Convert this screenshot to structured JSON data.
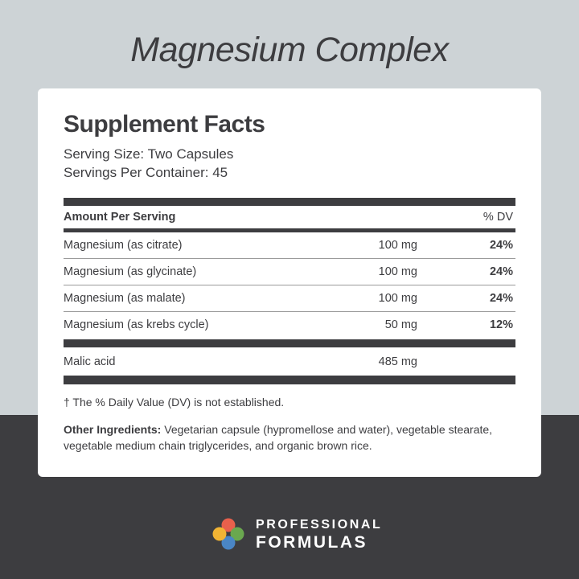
{
  "product_title": "Magnesium Complex",
  "panel": {
    "title": "Supplement Facts",
    "serving_size": "Serving Size: Two Capsules",
    "servings_per_container": "Servings Per Container: 45",
    "header_left": "Amount Per Serving",
    "header_right": "% DV",
    "rows": [
      {
        "name": "Magnesium (as citrate)",
        "amount": "100 mg",
        "dv": "24%"
      },
      {
        "name": "Magnesium (as glycinate)",
        "amount": "100 mg",
        "dv": "24%"
      },
      {
        "name": "Magnesium (as malate)",
        "amount": "100 mg",
        "dv": "24%"
      },
      {
        "name": "Magnesium (as krebs cycle)",
        "amount": "50 mg",
        "dv": "12%"
      },
      {
        "name": "Malic acid",
        "amount": "485 mg",
        "dv": ""
      }
    ],
    "note": "† The % Daily Value (DV) is not established.",
    "other_label": "Other Ingredients:",
    "other_text": " Vegetarian capsule (hypromellose and water), vegetable stearate, vegetable medium chain triglycerides, and organic brown rice."
  },
  "brand": {
    "line1": "PROFESSIONAL",
    "line2": "FORMULAS",
    "colors": [
      "#e8604c",
      "#6aa84f",
      "#4a86c5",
      "#f1b434"
    ]
  },
  "colors": {
    "top_bg": "#cdd3d6",
    "bottom_bg": "#3d3d40",
    "text": "#3d3d40"
  }
}
